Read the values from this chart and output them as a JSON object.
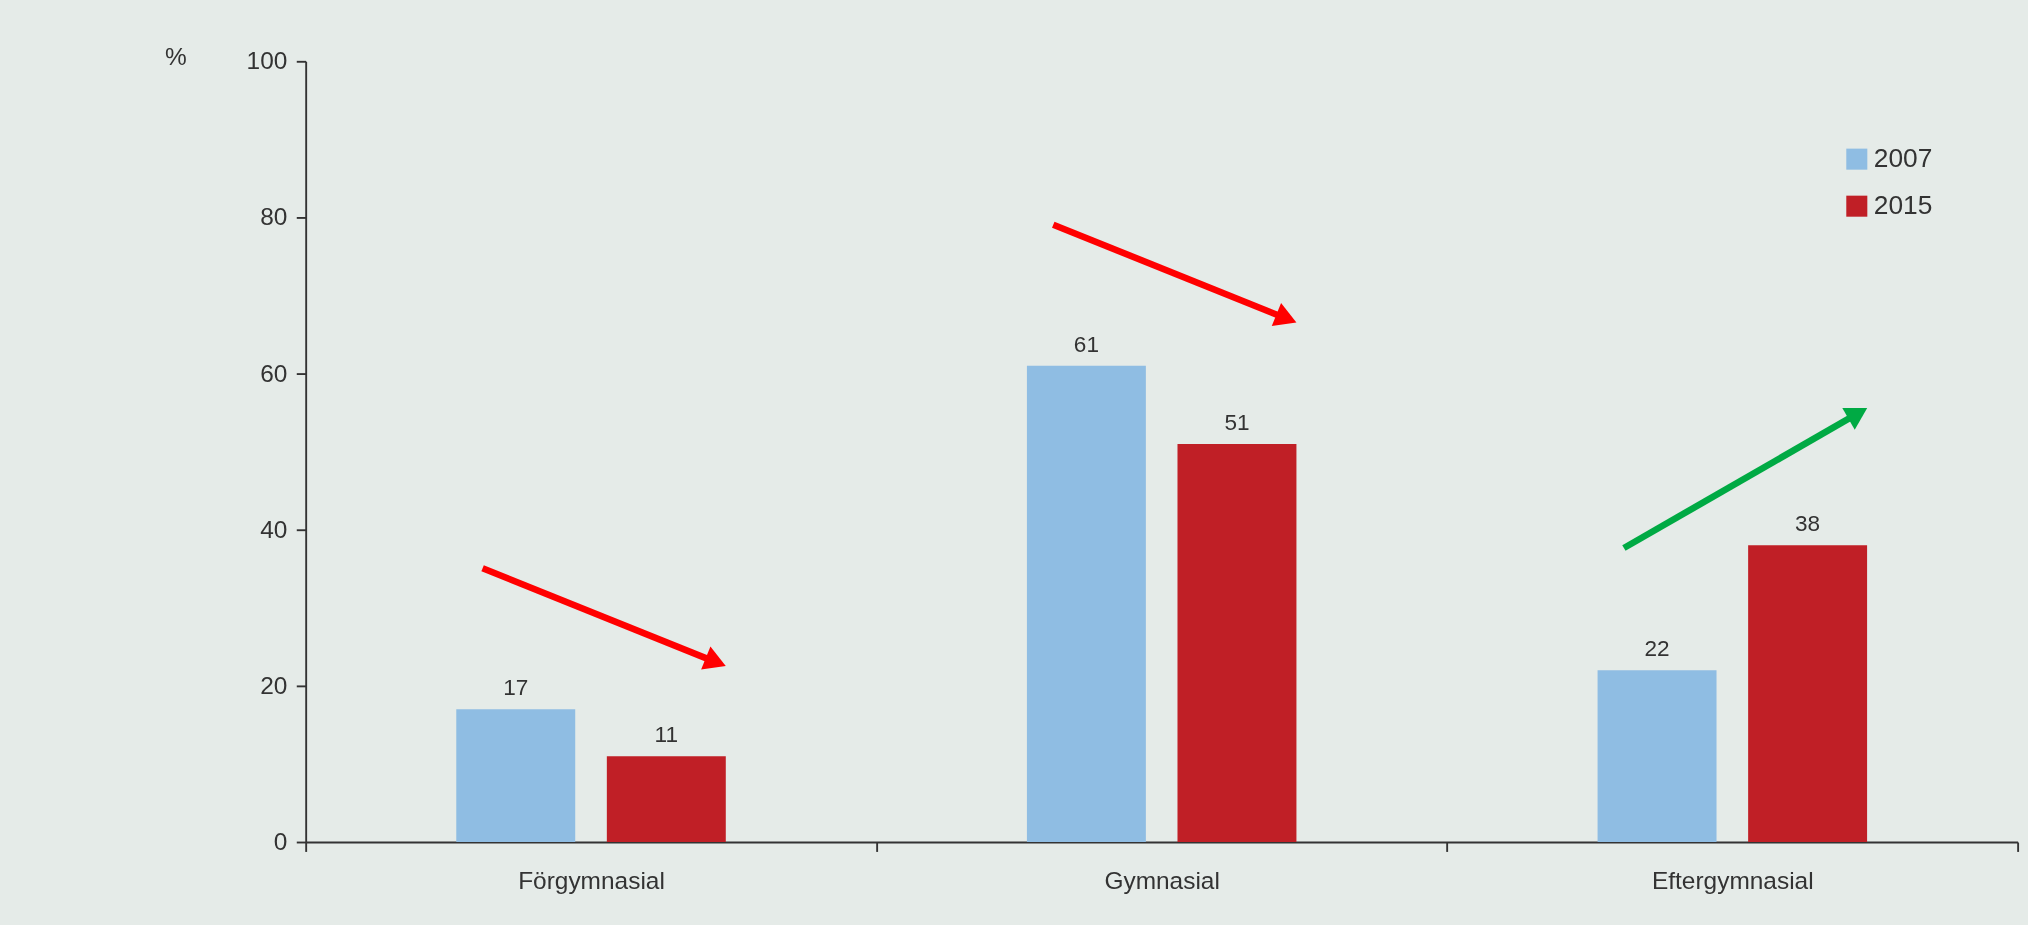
{
  "chart_data": {
    "type": "bar",
    "ylabel": "%",
    "categories": [
      "Förgymnasial",
      "Gymnasial",
      "Eftergymnasial"
    ],
    "series": [
      {
        "name": "2007",
        "color": "#8fbde3",
        "values": [
          17,
          61,
          22
        ]
      },
      {
        "name": "2015",
        "color": "#c01f26",
        "values": [
          11,
          51,
          38
        ]
      }
    ],
    "ylim": [
      0,
      100
    ],
    "yticks": [
      0,
      20,
      40,
      60,
      80,
      100
    ],
    "data_labels": true,
    "legend": "top right",
    "grid": false
  }
}
